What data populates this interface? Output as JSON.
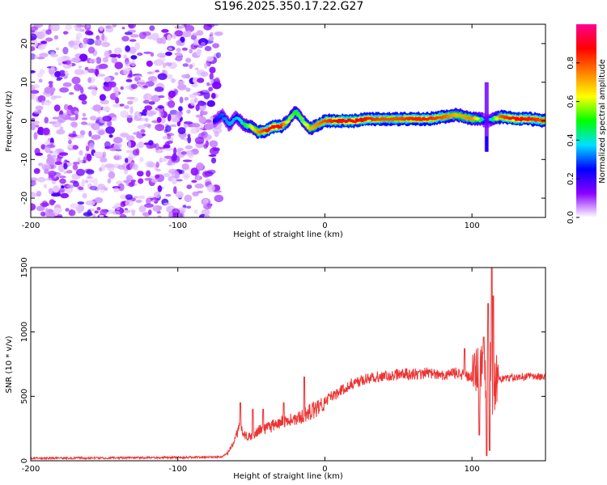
{
  "title": "S196.2025.350.17.22.G27",
  "chart_data": [
    {
      "type": "heatmap",
      "xlabel": "Height of straight line (km)",
      "ylabel": "Frequency (Hz)",
      "xlim": [
        -200,
        150
      ],
      "ylim": [
        -25,
        25
      ],
      "xticks": [
        -200,
        -100,
        0,
        100
      ],
      "yticks": [
        -20,
        -10,
        0,
        10,
        20
      ],
      "colorbar": {
        "label": "Normalized spectral amplitude",
        "range": [
          0,
          1
        ],
        "ticks": [
          0.0,
          0.2,
          0.4,
          0.6,
          0.8
        ],
        "tick_labels": [
          "0.0",
          "0.2",
          "0.4",
          "0.6",
          "0.8"
        ],
        "colors": [
          "#ffffff",
          "#8a00ff",
          "#0000ff",
          "#00e0ff",
          "#00ff00",
          "#ffff00",
          "#ff8000",
          "#ff0000",
          "#ff0090"
        ]
      },
      "noise_region_x": [
        -200,
        -72
      ],
      "ridge": {
        "x": [
          -75,
          -70,
          -65,
          -60,
          -55,
          -50,
          -45,
          -40,
          -35,
          -30,
          -25,
          -20,
          -15,
          -10,
          -5,
          0,
          10,
          20,
          30,
          40,
          50,
          60,
          70,
          80,
          90,
          100,
          105,
          110,
          115,
          120,
          130,
          140,
          150
        ],
        "freq": [
          0,
          1.5,
          -1,
          1,
          -1,
          -1.5,
          -3,
          -2.5,
          -1.5,
          -1.5,
          0,
          2.5,
          0,
          -2,
          -1,
          0,
          0,
          0,
          0.5,
          0.5,
          0.5,
          0.5,
          0.5,
          1,
          1.5,
          0.5,
          0.5,
          0,
          0.5,
          1,
          0.5,
          0.5,
          0
        ],
        "amplitude": [
          0.25,
          0.3,
          0.35,
          0.35,
          0.45,
          0.6,
          0.75,
          0.85,
          0.9,
          0.88,
          0.6,
          0.5,
          0.55,
          0.7,
          0.75,
          0.8,
          0.9,
          0.9,
          0.85,
          0.8,
          0.8,
          0.85,
          0.85,
          0.8,
          0.7,
          0.75,
          0.6,
          0.2,
          0.5,
          0.8,
          0.9,
          0.85,
          0.8
        ]
      },
      "spike_x": 110,
      "spike_freq_range": [
        -8,
        10
      ]
    },
    {
      "type": "line",
      "xlabel": "Height of straight line (km)",
      "ylabel": "SNR (10 * v/v)",
      "xlim": [
        -200,
        150
      ],
      "ylim": [
        0,
        1500
      ],
      "xticks": [
        -200,
        -100,
        0,
        100
      ],
      "yticks": [
        0,
        500,
        1000,
        1500
      ],
      "color": "#ee3333",
      "series": [
        {
          "name": "SNR",
          "x": [
            -200,
            -150,
            -100,
            -70,
            -66,
            -62,
            -58,
            -55,
            -50,
            -45,
            -40,
            -30,
            -20,
            -10,
            0,
            10,
            20,
            30,
            40,
            50,
            60,
            70,
            80,
            90,
            100,
            105,
            108,
            110,
            112,
            114,
            116,
            120,
            130,
            140,
            150
          ],
          "y": [
            20,
            22,
            25,
            30,
            60,
            150,
            260,
            200,
            180,
            240,
            250,
            300,
            330,
            380,
            460,
            540,
            610,
            640,
            660,
            670,
            670,
            680,
            670,
            680,
            650,
            700,
            800,
            600,
            1000,
            300,
            650,
            640,
            650,
            655,
            650
          ],
          "spikes": [
            {
              "x": -57.5,
              "y": 450
            },
            {
              "x": -49,
              "y": 400
            },
            {
              "x": -42,
              "y": 400
            },
            {
              "x": -28,
              "y": 450
            },
            {
              "x": -14,
              "y": 650
            },
            {
              "x": 95,
              "y": 870
            },
            {
              "x": 108,
              "y": 960
            },
            {
              "x": 111,
              "y": 1220
            },
            {
              "x": 113.5,
              "y": 1500
            },
            {
              "x": 114.5,
              "y": 1280
            }
          ],
          "dips": [
            {
              "x": 110,
              "y": 40
            },
            {
              "x": 112,
              "y": 80
            },
            {
              "x": 105,
              "y": 200
            }
          ]
        }
      ]
    }
  ]
}
